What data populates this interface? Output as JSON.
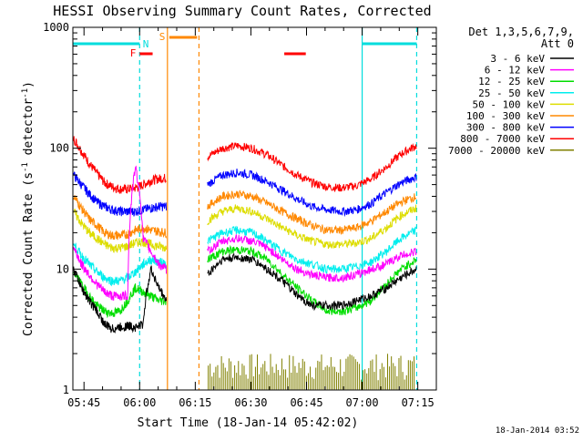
{
  "chart_data": {
    "type": "line",
    "title": "HESSI Observing Summary Count Rates, Corrected",
    "xlabel": "Start Time (18-Jan-14 05:42:02)",
    "ylabel_main": "Corrected Count Rate (s",
    "ylabel_sup1": "-1",
    "ylabel_mid": " detector",
    "ylabel_sup2": "-1",
    "ylabel_end": ")",
    "y_scale": "log",
    "ylim": [
      1,
      1000
    ],
    "xlim_minutes": [
      42.0,
      140.0
    ],
    "x_ticks": [
      {
        "m": 45,
        "label": "05:45"
      },
      {
        "m": 60,
        "label": "06:00"
      },
      {
        "m": 75,
        "label": "06:15"
      },
      {
        "m": 90,
        "label": "06:30"
      },
      {
        "m": 105,
        "label": "06:45"
      },
      {
        "m": 120,
        "label": "07:00"
      },
      {
        "m": 135,
        "label": "07:15"
      }
    ],
    "y_ticks": [
      {
        "v": 1,
        "label": "1"
      },
      {
        "v": 10,
        "label": "10"
      },
      {
        "v": 100,
        "label": "100"
      },
      {
        "v": 1000,
        "label": "1000"
      }
    ],
    "legend_header": [
      "Det 1,3,5,6,7,9,",
      "Att 0"
    ],
    "legend_position": "top-right, outside plot",
    "timestamp": "18-Jan-2014 03:52",
    "series": [
      {
        "name": "3 - 6 keV",
        "color": "#000000",
        "v1": [
          10,
          7,
          5.5,
          4.5,
          3.5,
          3.2,
          3.3,
          3.4,
          3.3,
          3.5,
          10,
          7,
          5.5
        ],
        "v2": [
          9,
          12,
          12.5,
          12,
          10,
          8,
          6,
          5,
          5,
          5,
          5.5,
          6,
          7,
          8.5,
          10
        ]
      },
      {
        "name": "6 - 12 keV",
        "color": "#ff00ff",
        "v1": [
          15,
          11,
          9,
          7.5,
          6.5,
          6,
          6,
          6,
          70,
          18,
          14,
          11,
          10
        ],
        "v2": [
          14,
          17,
          18,
          17,
          15,
          12,
          10,
          9,
          8.5,
          8.5,
          9,
          10,
          11,
          13,
          14
        ]
      },
      {
        "name": "12 - 25 keV",
        "color": "#00dd00",
        "v1": [
          9.5,
          7.5,
          6,
          5,
          4.5,
          4.3,
          4.5,
          5.5,
          7,
          6.5,
          6,
          5.5,
          5.5
        ],
        "v2": [
          12,
          14,
          14.5,
          14,
          12,
          9,
          7,
          5.5,
          4.5,
          4.5,
          4.8,
          5.5,
          7.5,
          10,
          12
        ]
      },
      {
        "name": "25 - 50 keV",
        "color": "#00eeee",
        "v1": [
          16,
          13,
          11,
          9.5,
          8.5,
          8,
          8,
          8.5,
          9.5,
          11,
          12,
          11.5,
          11
        ],
        "v2": [
          17,
          20,
          21,
          20,
          17,
          14,
          12,
          11,
          10,
          10,
          10.5,
          11.5,
          14,
          18,
          21
        ]
      },
      {
        "name": "50 - 100 keV",
        "color": "#dddd00",
        "v1": [
          30,
          24,
          20,
          18,
          16,
          15,
          15,
          15.5,
          16.5,
          17,
          16,
          15.5,
          15
        ],
        "v2": [
          25,
          30,
          32,
          30,
          26,
          22,
          19,
          17,
          16,
          16,
          16.5,
          18,
          22,
          28,
          32
        ]
      },
      {
        "name": "100 - 300 keV",
        "color": "#ff8800",
        "v1": [
          40,
          32,
          26,
          23,
          20,
          19,
          19,
          19.5,
          21,
          22,
          21,
          20.5,
          20
        ],
        "v2": [
          33,
          40,
          42,
          40,
          35,
          30,
          26,
          23,
          21,
          21,
          22,
          25,
          30,
          36,
          40
        ]
      },
      {
        "name": "300 - 800 keV",
        "color": "#0000ff",
        "v1": [
          60,
          50,
          42,
          36,
          33,
          31,
          30,
          30,
          30,
          31,
          32,
          33,
          33
        ],
        "v2": [
          50,
          60,
          63,
          60,
          53,
          45,
          38,
          33,
          31,
          30,
          31,
          35,
          43,
          52,
          58
        ]
      },
      {
        "name": "800 - 7000 keV",
        "color": "#ff0000",
        "v1": [
          120,
          95,
          75,
          62,
          52,
          48,
          46,
          46,
          47,
          50,
          54,
          56,
          57
        ],
        "v2": [
          85,
          100,
          105,
          100,
          88,
          72,
          60,
          52,
          48,
          47,
          49,
          56,
          70,
          90,
          105
        ]
      },
      {
        "name": "7000 - 20000 keV",
        "color": "#808000",
        "v1": [],
        "v2": [
          1.5,
          2,
          1.3,
          2,
          1.6,
          2,
          1.2,
          1.9,
          1.4,
          2,
          1.5,
          1.8,
          1.3,
          2,
          1.6
        ]
      }
    ],
    "bursts": [
      {
        "start": 42.2,
        "end": 55.0,
        "series": "3 - 6 keV"
      }
    ],
    "markers": {
      "N": {
        "label": "N",
        "color": "#00dddd",
        "segments": [
          [
            42.0,
            60.0
          ],
          [
            120.0,
            134.7
          ]
        ]
      },
      "F": {
        "label": "F",
        "color": "#ff0000",
        "segments": [
          [
            60.0,
            63.5
          ],
          [
            99.0,
            104.8
          ]
        ]
      },
      "S": {
        "label": "S",
        "color": "#ff8800",
        "segments": [
          [
            68.0,
            75.5
          ]
        ]
      }
    },
    "vertical_lines": [
      {
        "m": 60.0,
        "color": "#00dddd",
        "style": "dashed"
      },
      {
        "m": 67.5,
        "color": "#ff8800",
        "style": "solid"
      },
      {
        "m": 76.0,
        "color": "#ff8800",
        "style": "dashed"
      },
      {
        "m": 120.0,
        "color": "#00dddd",
        "style": "solid"
      },
      {
        "m": 134.7,
        "color": "#00dddd",
        "style": "dashed"
      }
    ]
  }
}
